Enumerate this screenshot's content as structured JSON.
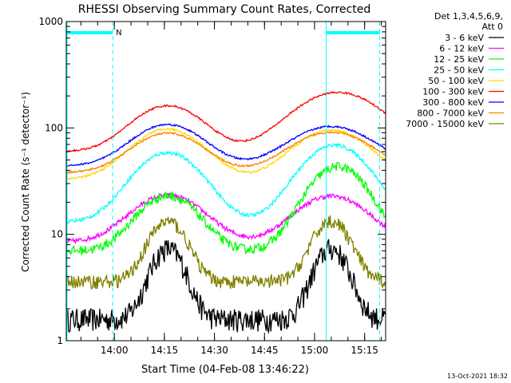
{
  "chart_data": {
    "type": "line",
    "title": "RHESSI Observing Summary Count Rates, Corrected",
    "xlabel": "Start Time (04-Feb-08 13:46:22)",
    "ylabel": "Corrected Count Rate (s⁻¹ detector⁻¹)",
    "y_scale": "log",
    "ylim": [
      1,
      1000
    ],
    "xlim_minutes": [
      -14.4,
      81.3
    ],
    "x_ticks": [
      {
        "minute": 0,
        "label": "14:00"
      },
      {
        "minute": 15,
        "label": "14:15"
      },
      {
        "minute": 30,
        "label": "14:30"
      },
      {
        "minute": 45,
        "label": "14:45"
      },
      {
        "minute": 60,
        "label": "15:00"
      },
      {
        "minute": 75,
        "label": "15:15"
      }
    ],
    "y_ticks": [
      {
        "value": 1,
        "label": "1"
      },
      {
        "value": 10,
        "label": "10"
      },
      {
        "value": 100,
        "label": "100"
      },
      {
        "value": 1000,
        "label": "1000"
      }
    ],
    "grid": false,
    "legend": {
      "position": "right",
      "header_line1": "Det 1,3,4,5,6,9,",
      "header_line2": "Att 0"
    },
    "annotations": {
      "n_label": "N",
      "bottom_right_date": "13-Oct-2021 18:32",
      "night_bars": [
        [
          -14.4,
          -0.5
        ],
        [
          63.5,
          79.5
        ]
      ],
      "dashed_lines_minutes": [
        -0.5,
        79.5
      ],
      "solid_line_minutes": 63.5
    },
    "series": [
      {
        "name": "3 - 6 keV",
        "color": "#000000",
        "base": 1.6,
        "peaks": [
          [
            16,
            3.6,
            4.5
          ],
          [
            65,
            3.6,
            4.5
          ]
        ],
        "noise": 0.25
      },
      {
        "name": "6 - 12 keV",
        "color": "#ff00ff",
        "base": 8.5,
        "peaks": [
          [
            16,
            1.75,
            9.5
          ],
          [
            65,
            1.7,
            9.5
          ]
        ],
        "noise": 0.05
      },
      {
        "name": "12 - 25 keV",
        "color": "#00ff00",
        "base": 7.0,
        "peaks": [
          [
            16,
            2.3,
            8
          ],
          [
            67,
            5.2,
            8
          ]
        ],
        "noise": 0.1
      },
      {
        "name": "25 - 50 keV",
        "color": "#00ffff",
        "base": 13,
        "peaks": [
          [
            16,
            3.5,
            9
          ],
          [
            66,
            4.3,
            9
          ]
        ],
        "noise": 0.04
      },
      {
        "name": "50 - 100 keV",
        "color": "#ffd700",
        "base": 33,
        "peaks": [
          [
            16,
            1.95,
            9.5
          ],
          [
            65,
            1.9,
            10
          ]
        ],
        "noise": 0.025
      },
      {
        "name": "100 - 300 keV",
        "color": "#ff0000",
        "base": 60,
        "peaks": [
          [
            16,
            1.7,
            9.5
          ],
          [
            67,
            2.6,
            12
          ]
        ],
        "noise": 0.02
      },
      {
        "name": "300 - 800 keV",
        "color": "#0000ff",
        "base": 44,
        "peaks": [
          [
            16,
            1.45,
            9.5
          ],
          [
            65,
            1.35,
            11
          ]
        ],
        "noise": 0.02
      },
      {
        "name": "800 - 7000 keV",
        "color": "#ff8000",
        "base": 38,
        "peaks": [
          [
            16,
            1.35,
            9.5
          ],
          [
            65,
            1.4,
            11
          ]
        ],
        "noise": 0.02
      },
      {
        "name": "7000 - 15000 keV",
        "color": "#808000",
        "base": 3.6,
        "peaks": [
          [
            16,
            2.7,
            5
          ],
          [
            65,
            2.7,
            5
          ]
        ],
        "noise": 0.15
      }
    ]
  }
}
